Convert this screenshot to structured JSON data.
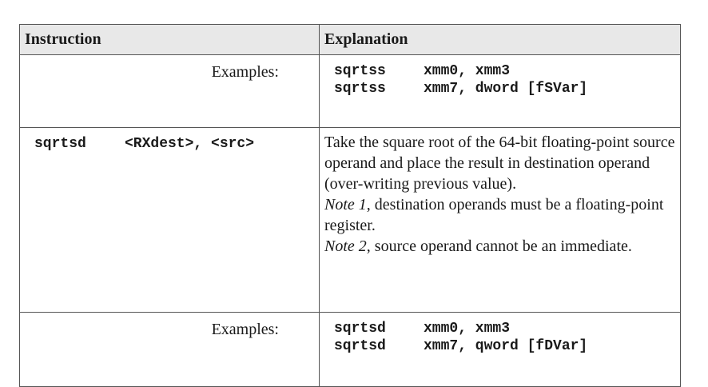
{
  "headers": {
    "instruction": "Instruction",
    "explanation": "Explanation"
  },
  "rows": [
    {
      "examples_label": "Examples:",
      "code": [
        {
          "mnemonic": "sqrtss",
          "operands": "xmm0, xmm3"
        },
        {
          "mnemonic": "sqrtss",
          "operands": "xmm7, dword [fSVar]"
        }
      ]
    },
    {
      "instruction": {
        "mnemonic": "sqrtsd",
        "operands": "<RXdest>, <src>"
      },
      "explanation": {
        "text": "Take the square root of the 64-bit floating-point source operand and place the result in destination operand (over-writing previous value).",
        "note1_label": "Note 1",
        "note1_text": ", destination operands must be a floating-point register.",
        "note2_label": "Note 2",
        "note2_text": ", source operand cannot be an immediate."
      }
    },
    {
      "examples_label": "Examples:",
      "code": [
        {
          "mnemonic": "sqrtsd",
          "operands": "xmm0, xmm3"
        },
        {
          "mnemonic": "sqrtsd",
          "operands": "xmm7, qword [fDVar]"
        }
      ]
    }
  ]
}
